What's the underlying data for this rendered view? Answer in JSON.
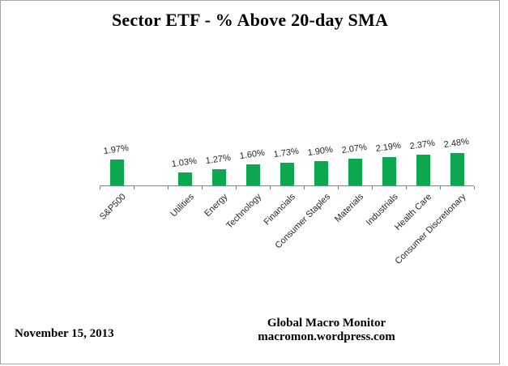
{
  "frame": {
    "background": "#ffffff",
    "border_color": "#a6a6a6"
  },
  "chart_data": {
    "type": "bar",
    "title": "Sector ETF - % Above 20-day SMA",
    "categories": [
      "S&P500",
      "Utilities",
      "Energy",
      "Technology",
      "Financials",
      "Consumer Staples",
      "Materials",
      "Industrials",
      "Health Care",
      "Consumer Discretionary"
    ],
    "values": [
      1.97,
      1.03,
      1.27,
      1.6,
      1.73,
      1.9,
      2.07,
      2.19,
      2.37,
      2.48
    ],
    "data_labels": [
      "1.97%",
      "1.03%",
      "1.27%",
      "1.60%",
      "1.73%",
      "1.90%",
      "2.07%",
      "2.19%",
      "2.37%",
      "2.48%"
    ],
    "unit": "%",
    "ylim": [
      0,
      2.6
    ],
    "grid": false,
    "legend": false,
    "gap_after_first_category": true,
    "category_label_rotation_deg": 45,
    "data_label_rotation_deg": 8,
    "bar_color": "#0da750",
    "axis_color": "#848484",
    "data_label_color": "#262626",
    "category_label_color": "#262626"
  },
  "footer": {
    "date": "November 15, 2013",
    "credit_line1": "Global Macro Monitor",
    "credit_line2": "macromon.wordpress.com"
  }
}
